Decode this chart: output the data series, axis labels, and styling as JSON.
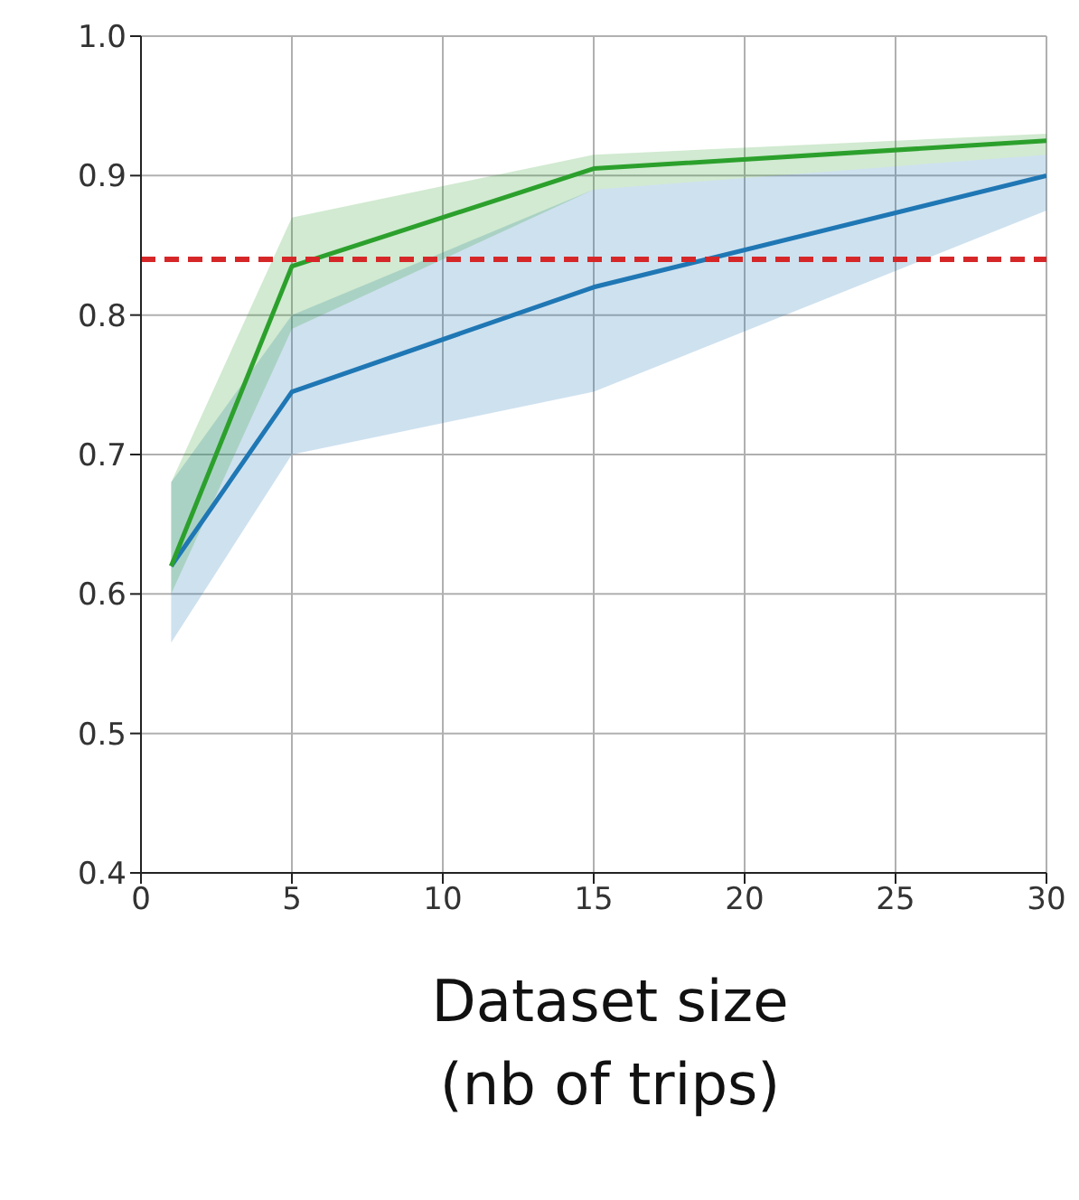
{
  "chart_data": {
    "type": "line",
    "xlabel": "Dataset size\n(nb of trips)",
    "x": [
      1,
      5,
      15,
      30
    ],
    "series": [
      {
        "color": "#1f77b4",
        "values": [
          0.62,
          0.745,
          0.82,
          0.9
        ],
        "lower": [
          0.565,
          0.7,
          0.745,
          0.875
        ],
        "upper": [
          0.68,
          0.8,
          0.89,
          0.915
        ]
      },
      {
        "color": "#2ca02c",
        "values": [
          0.62,
          0.835,
          0.905,
          0.925
        ],
        "lower": [
          0.6,
          0.79,
          0.89,
          0.915
        ],
        "upper": [
          0.68,
          0.87,
          0.915,
          0.93
        ]
      }
    ],
    "ref_lines": [
      {
        "axis": "y",
        "value": 0.84,
        "color": "#d62728",
        "line_style": "dashed"
      }
    ],
    "xlim": [
      0,
      30
    ],
    "xticks": [
      0,
      5,
      10,
      15,
      20,
      25,
      30
    ],
    "ylim": [
      0.4,
      1.0
    ],
    "yticks": [
      0.4,
      0.5,
      0.6,
      0.7,
      0.8,
      0.9,
      {
        "value": 1,
        "label": "1.0"
      }
    ],
    "grid": true,
    "line_style": "solid",
    "marker": "none"
  }
}
